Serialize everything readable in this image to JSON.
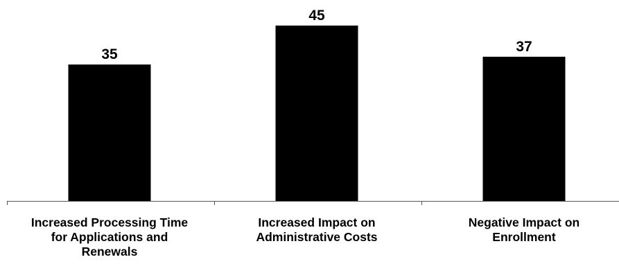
{
  "chart_data": {
    "type": "bar",
    "categories": [
      [
        "Increased Processing Time",
        "for Applications and",
        "Renewals"
      ],
      [
        "Increased Impact on",
        "Administrative Costs"
      ],
      [
        "Negative Impact on",
        "Enrollment"
      ]
    ],
    "values": [
      35,
      45,
      37
    ],
    "data_labels": [
      "35",
      "45",
      "37"
    ],
    "title": "",
    "xlabel": "",
    "ylabel": "",
    "ylim": [
      0,
      48
    ],
    "grid": false,
    "legend": "none",
    "colors": {
      "bar": "#000000",
      "axis": "#555555",
      "text": "#000000",
      "background": "#ffffff"
    }
  }
}
